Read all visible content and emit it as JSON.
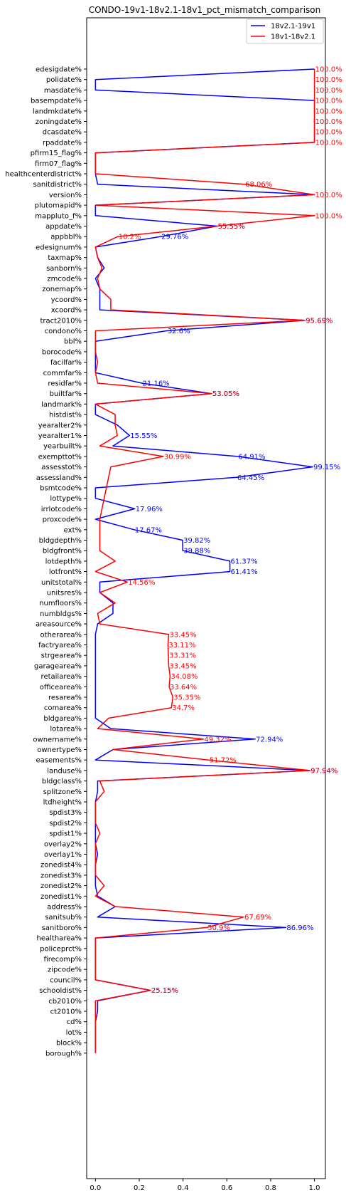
{
  "chart_data": {
    "type": "line",
    "title": "CONDO-19v1-18v2.1-18v1_pct_mismatch_comparison",
    "orientation": "horizontal",
    "xlim": [
      -0.04,
      1.05
    ],
    "x_ticks": [
      0.0,
      0.2,
      0.4,
      0.6,
      0.8,
      1.0
    ],
    "x_tick_labels": [
      "0.0",
      "0.2",
      "0.4",
      "0.6",
      "0.8",
      "1.0"
    ],
    "grid": false,
    "legend_position": "top-right",
    "categories": [
      "edesigdate%",
      "polidate%",
      "masdate%",
      "basempdate%",
      "landmkdate%",
      "zoningdate%",
      "dcasdate%",
      "rpaddate%",
      "pfirm15_flag%",
      "firm07_flag%",
      "healthcenterdistrict%",
      "sanitdistrict%",
      "version%",
      "plutomapid%",
      "mappluto_f%",
      "appdate%",
      "appbbl%",
      "edesignum%",
      "taxmap%",
      "sanborn%",
      "zmcode%",
      "zonemap%",
      "ycoord%",
      "xcoord%",
      "tract2010%",
      "condono%",
      "bbl%",
      "borocode%",
      "facilfar%",
      "commfar%",
      "residfar%",
      "builtfar%",
      "landmark%",
      "histdist%",
      "yearalter2%",
      "yearalter1%",
      "yearbuilt%",
      "exempttot%",
      "assesstot%",
      "assessland%",
      "bsmtcode%",
      "lottype%",
      "irrlotcode%",
      "proxcode%",
      "ext%",
      "bldgdepth%",
      "bldgfront%",
      "lotdepth%",
      "lotfront%",
      "unitstotal%",
      "unitsres%",
      "numfloors%",
      "numbldgs%",
      "areasource%",
      "otherarea%",
      "factryarea%",
      "strgearea%",
      "garagearea%",
      "retailarea%",
      "officearea%",
      "resarea%",
      "comarea%",
      "bldgarea%",
      "lotarea%",
      "ownername%",
      "ownertype%",
      "easements%",
      "landuse%",
      "bldgclass%",
      "splitzone%",
      "ltdheight%",
      "spdist3%",
      "spdist2%",
      "spdist1%",
      "overlay2%",
      "overlay1%",
      "zonedist4%",
      "zonedist3%",
      "zonedist2%",
      "zonedist1%",
      "address%",
      "sanitsub%",
      "sanitboro%",
      "healtharea%",
      "policeprct%",
      "firecomp%",
      "zipcode%",
      "council%",
      "schooldist%",
      "cb2010%",
      "ct2010%",
      "cd%",
      "lot%",
      "block%",
      "borough%"
    ],
    "series": [
      {
        "name": "18v2.1-19v1",
        "color": "#0000ff",
        "values": [
          1.0,
          0.0,
          0.0,
          1.0,
          1.0,
          1.0,
          1.0,
          1.0,
          0.0,
          0.0,
          0.0,
          0.01,
          1.0,
          0.0,
          0.0,
          0.5555,
          0.2976,
          0.0,
          0.01,
          0.04,
          0.0,
          0.02,
          0.02,
          0.02,
          0.9569,
          0.326,
          0.0,
          0.0,
          0.0,
          0.0,
          0.2116,
          0.5305,
          0.0,
          0.0,
          0.1,
          0.1555,
          0.08,
          0.6491,
          0.9915,
          0.6445,
          0.0,
          0.0,
          0.1796,
          0.0,
          0.1767,
          0.3982,
          0.3988,
          0.6137,
          0.6141,
          0.02,
          0.02,
          0.08,
          0.08,
          0.01,
          0.0,
          0.0,
          0.0,
          0.0,
          0.0,
          0.0,
          0.0,
          0.0,
          0.0,
          0.07,
          0.7294,
          0.08,
          0.0,
          0.9794,
          0.01,
          0.01,
          0.0,
          0.0,
          0.0,
          0.0,
          0.0,
          0.01,
          0.0,
          0.0,
          0.0,
          0.01,
          0.09,
          0.01,
          0.8696,
          0.0,
          0.0,
          0.0,
          0.0,
          0.0,
          0.2515,
          0.01,
          0.01,
          0.0,
          0.0,
          0.0,
          0.0
        ],
        "labels": {
          "15": "55.55%",
          "16": "29.76%",
          "24": "95.69%",
          "25": "32.6%",
          "30": "21.16%",
          "31": "53.05%",
          "35": "15.55%",
          "37": "64.91%",
          "38": "99.15%",
          "39": "64.45%",
          "42": "17.96%",
          "44": "17.67%",
          "45": "39.82%",
          "46": "39.88%",
          "47": "61.37%",
          "48": "61.41%",
          "64": "72.94%",
          "67": "97.94%",
          "82": "86.96%",
          "88": "25.15%"
        }
      },
      {
        "name": "18v1-18v2.1",
        "color": "#ff0000",
        "values": [
          1.0,
          1.0,
          1.0,
          1.0,
          1.0,
          1.0,
          1.0,
          1.0,
          0.0,
          0.0,
          0.0,
          0.6806,
          1.0,
          0.0,
          1.0,
          0.5555,
          0.102,
          0.0,
          0.01,
          0.03,
          0.01,
          0.02,
          0.07,
          0.07,
          0.9569,
          0.0,
          0.0,
          0.0,
          0.01,
          0.0,
          0.01,
          0.5305,
          0.0,
          0.09,
          0.09,
          0.1,
          0.02,
          0.3099,
          0.07,
          0.06,
          0.05,
          0.04,
          0.03,
          0.02,
          0.02,
          0.02,
          0.02,
          0.09,
          0.0,
          0.1456,
          0.02,
          0.09,
          0.01,
          0.02,
          0.3345,
          0.3311,
          0.3331,
          0.3345,
          0.3408,
          0.3364,
          0.3535,
          0.347,
          0.06,
          0.01,
          0.4932,
          0.08,
          0.5172,
          0.9794,
          0.02,
          0.04,
          0.0,
          0.0,
          0.0,
          0.02,
          0.0,
          0.0,
          0.0,
          0.0,
          0.04,
          0.0,
          0.09,
          0.6769,
          0.509,
          0.0,
          0.0,
          0.0,
          0.0,
          0.0,
          0.2515,
          0.0,
          0.0,
          0.0,
          0.0,
          0.0,
          0.0
        ],
        "labels": {
          "0": "100.0%",
          "1": "100.0%",
          "2": "100.0%",
          "3": "100.0%",
          "4": "100.0%",
          "5": "100.0%",
          "6": "100.0%",
          "7": "100.0%",
          "11": "68.06%",
          "12": "100.0%",
          "14": "100.0%",
          "15": "55.55%",
          "16": "10.2%",
          "24": "95.69%",
          "31": "53.05%",
          "37": "30.99%",
          "49": "14.56%",
          "54": "33.45%",
          "55": "33.11%",
          "56": "33.31%",
          "57": "33.45%",
          "58": "34.08%",
          "59": "33.64%",
          "60": "35.35%",
          "61": "34.7%",
          "64": "49.32%",
          "66": "51.72%",
          "67": "97.94%",
          "81": "67.69%",
          "82": "50.9%",
          "88": "25.15%"
        }
      }
    ]
  }
}
